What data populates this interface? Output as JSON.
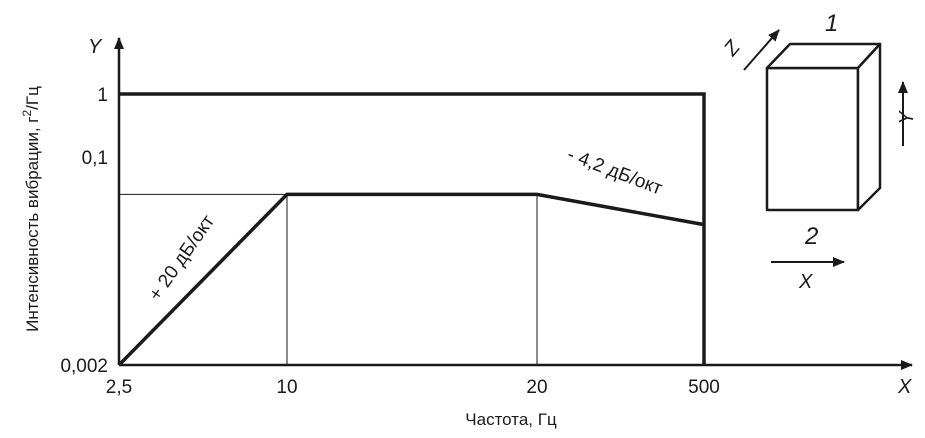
{
  "chart_data": {
    "type": "line",
    "x_axis_letter": "X",
    "y_axis_letter": "Y",
    "xlabel": "Частота, Гц",
    "ylabel_main": "Интенсивность вибрации, г",
    "ylabel_sup": "2",
    "ylabel_tail": "/Гц",
    "x_ticks": [
      "2,5",
      "10",
      "20",
      "500"
    ],
    "y_ticks": [
      "0,002",
      "0,1",
      "1"
    ],
    "series": [
      {
        "x": [
          2.5,
          10,
          20,
          500
        ],
        "y": [
          0.002,
          0.1,
          0.1,
          0.05
        ]
      },
      {
        "x": [
          2.5,
          500,
          500
        ],
        "y": [
          1,
          1,
          0.002
        ]
      }
    ],
    "annotations": {
      "rise": "+ 20 дБ/окт",
      "fall": "- 4,2 дБ/окт"
    },
    "inset": {
      "face_top": "1",
      "face_bottom": "2",
      "axis_z": "Z",
      "axis_y": "Y",
      "axis_x": "X"
    }
  }
}
